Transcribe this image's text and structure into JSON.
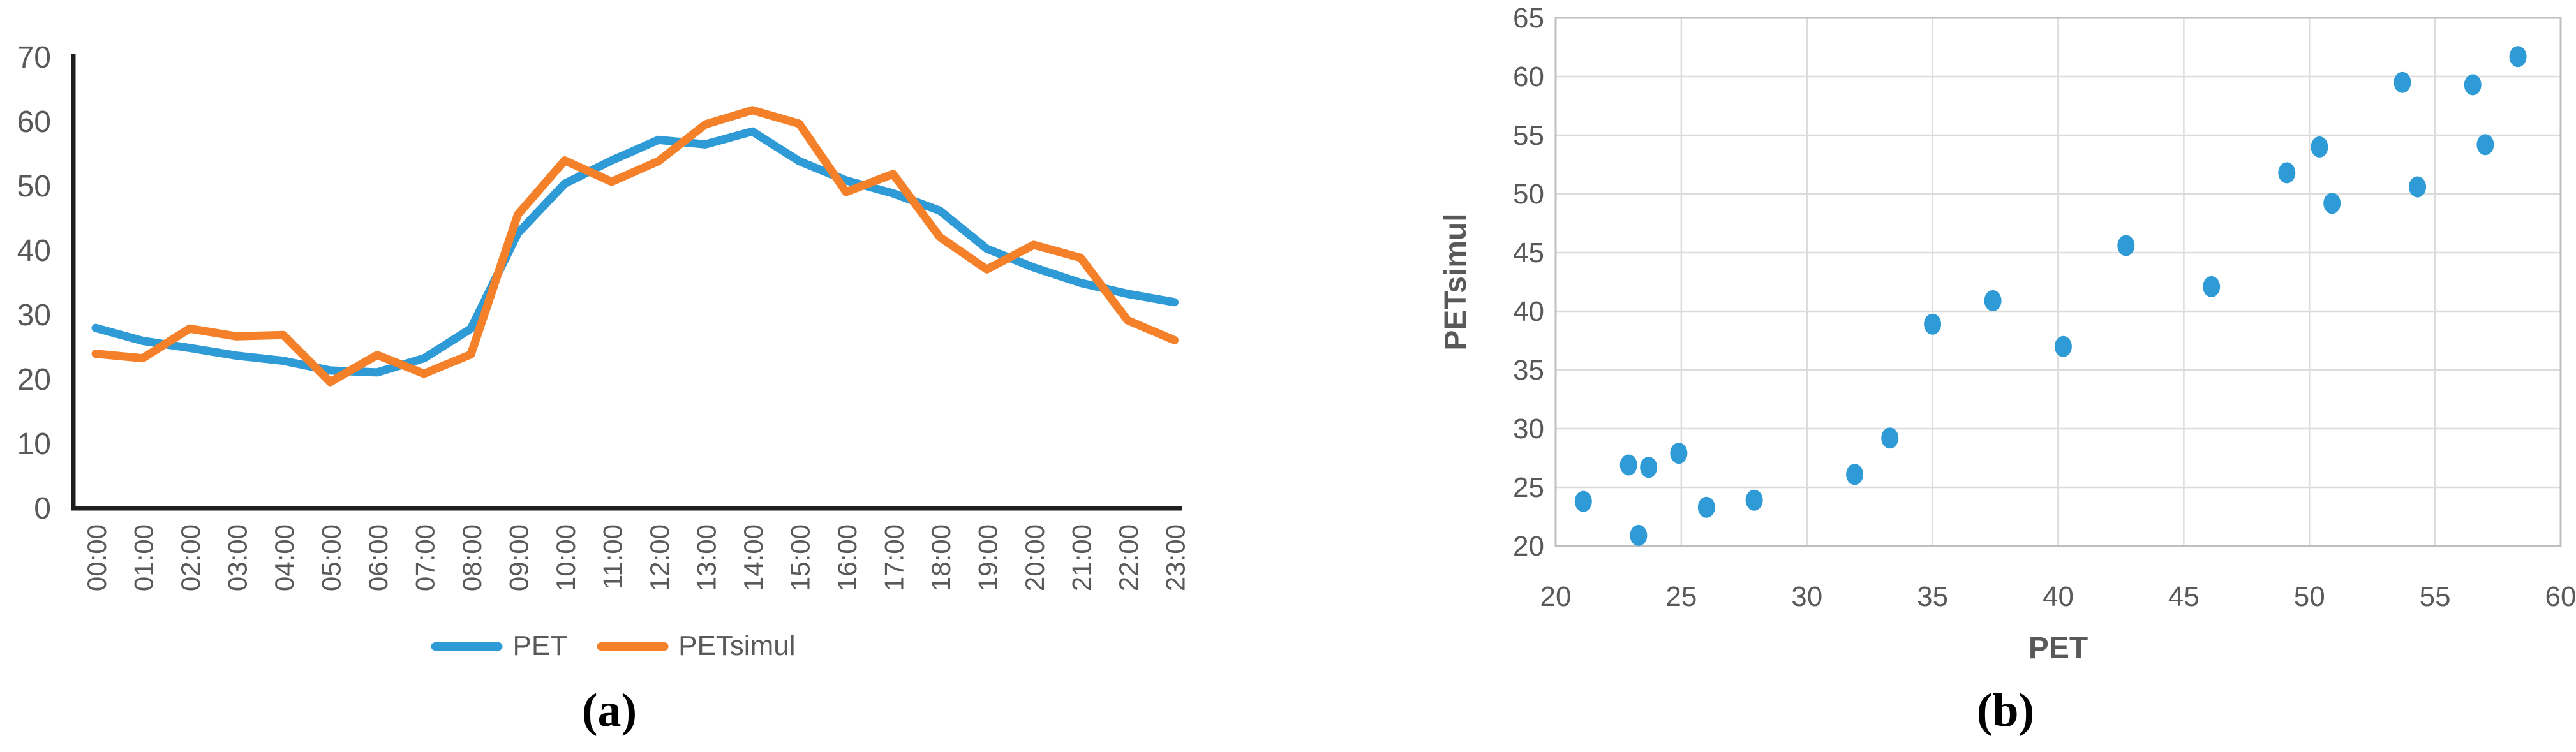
{
  "figure": {
    "panels": [
      {
        "caption": "(a)"
      },
      {
        "caption": "(b)"
      }
    ]
  },
  "colors": {
    "pet_line": "#2E9AD6",
    "petsimul_line": "#F4802A",
    "scatter_dot": "#2E9AD6",
    "axis_dark": "#1f1f1f",
    "tick_text": "#595959",
    "gridline": "#DCDCDC",
    "plot_border": "#BFBFBF"
  },
  "chart_data": [
    {
      "type": "line",
      "title": "",
      "xlabel": "",
      "ylabel": "",
      "categories": [
        "00:00",
        "01:00",
        "02:00",
        "03:00",
        "04:00",
        "05:00",
        "06:00",
        "07:00",
        "08:00",
        "09:00",
        "10:00",
        "11:00",
        "12:00",
        "13:00",
        "14:00",
        "15:00",
        "16:00",
        "17:00",
        "18:00",
        "19:00",
        "20:00",
        "21:00",
        "22:00",
        "23:00"
      ],
      "series": [
        {
          "name": "PET",
          "color": "#2E9AD6",
          "values": [
            28.0,
            26.0,
            24.9,
            23.7,
            22.9,
            21.4,
            21.1,
            23.3,
            27.9,
            42.7,
            50.4,
            54.0,
            57.2,
            56.5,
            58.5,
            53.9,
            50.9,
            48.9,
            46.2,
            40.3,
            37.4,
            35.0,
            33.3,
            32.0
          ]
        },
        {
          "name": "PETsimul",
          "color": "#F4802A",
          "values": [
            24.0,
            23.3,
            27.9,
            26.7,
            26.9,
            19.6,
            23.8,
            20.9,
            23.9,
            45.6,
            54.0,
            50.7,
            53.9,
            59.6,
            61.8,
            59.7,
            49.1,
            51.9,
            42.1,
            37.1,
            40.9,
            38.9,
            29.2,
            26.1
          ]
        }
      ],
      "ylim": [
        0,
        70
      ],
      "ytick_step": 10,
      "grid": false,
      "legend_position": "bottom",
      "legend_entries": [
        "PET",
        "PETsimul"
      ]
    },
    {
      "type": "scatter",
      "title": "",
      "xlabel": "PET",
      "ylabel": "PETsimul",
      "xlim": [
        20,
        60
      ],
      "ylim": [
        20,
        65
      ],
      "xtick_step": 5,
      "ytick_step": 5,
      "grid": true,
      "points": [
        [
          21.1,
          23.8
        ],
        [
          22.9,
          26.9
        ],
        [
          23.3,
          20.9
        ],
        [
          23.7,
          26.7
        ],
        [
          24.9,
          27.9
        ],
        [
          26.0,
          23.3
        ],
        [
          27.9,
          23.9
        ],
        [
          31.9,
          26.1
        ],
        [
          33.3,
          29.2
        ],
        [
          35.0,
          38.9
        ],
        [
          37.4,
          40.9
        ],
        [
          40.2,
          37.0
        ],
        [
          42.7,
          45.6
        ],
        [
          46.1,
          42.1
        ],
        [
          49.1,
          51.8
        ],
        [
          50.4,
          54.0
        ],
        [
          50.9,
          49.2
        ],
        [
          53.7,
          59.5
        ],
        [
          54.3,
          50.6
        ],
        [
          56.5,
          59.3
        ],
        [
          57.0,
          54.2
        ],
        [
          58.3,
          61.7
        ]
      ]
    }
  ]
}
